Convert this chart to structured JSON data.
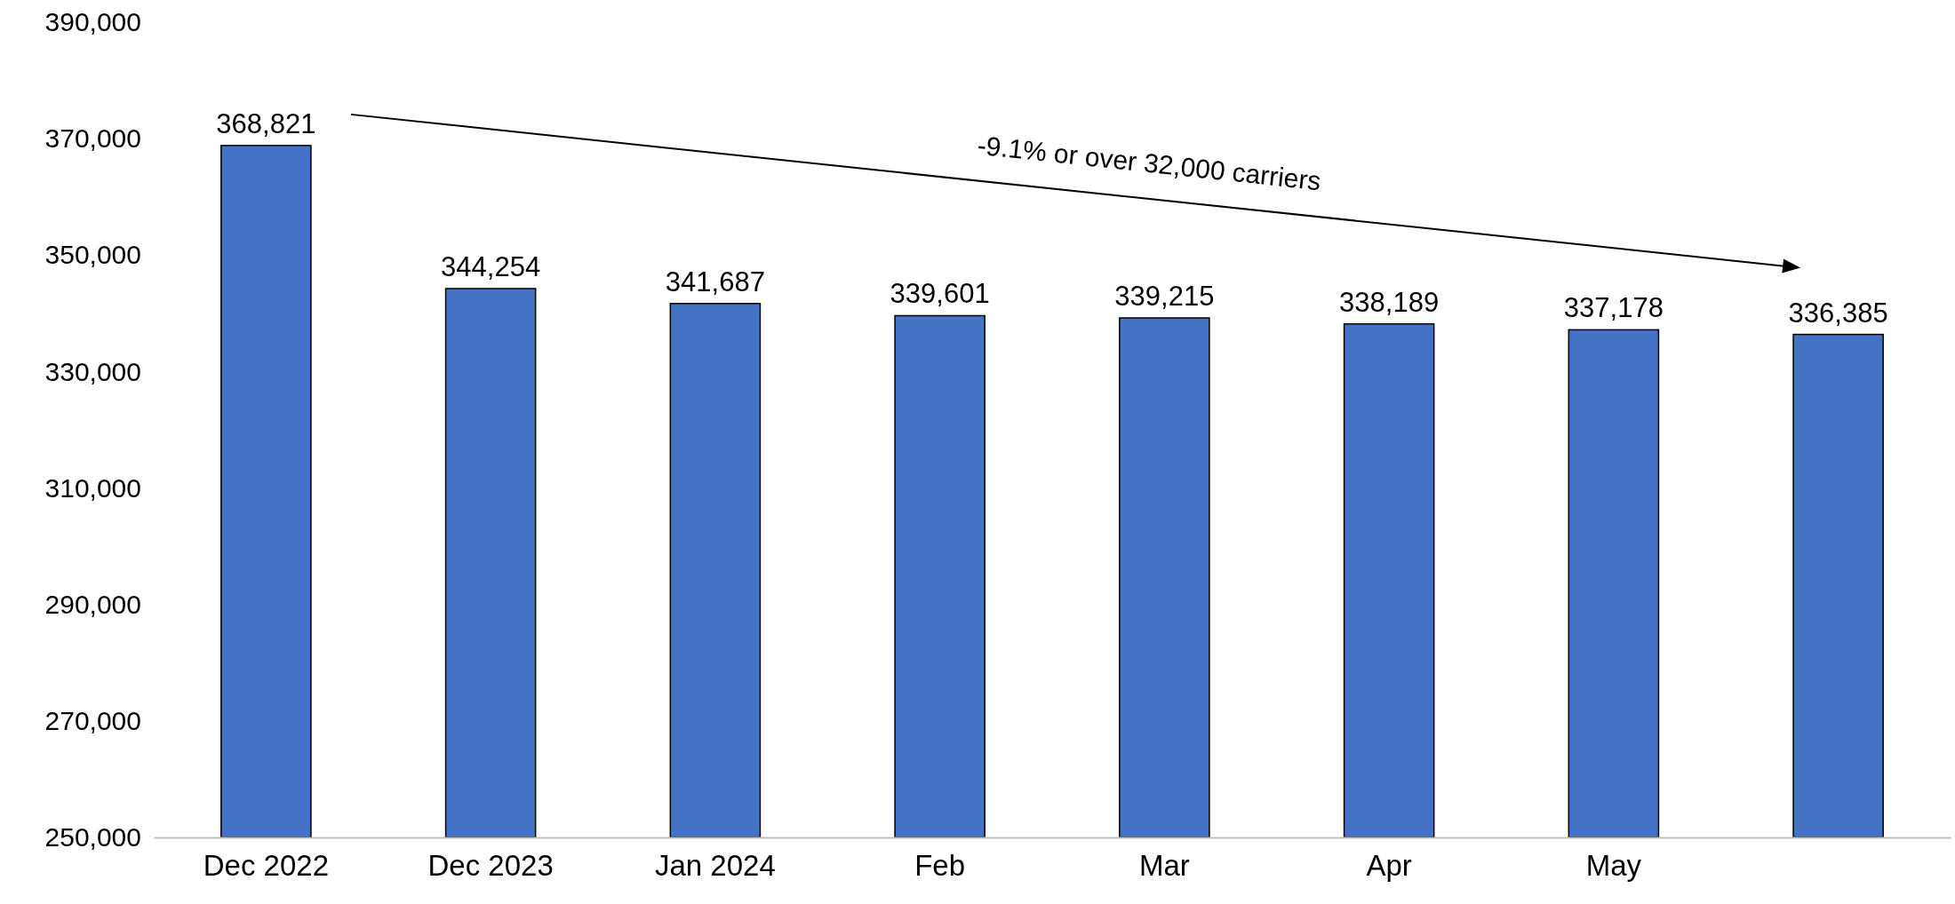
{
  "chart_data": {
    "type": "bar",
    "categories": [
      "Dec 2022",
      "Dec 2023",
      "Jan 2024",
      "Feb",
      "Mar",
      "Apr",
      "May",
      null
    ],
    "values": [
      368821,
      344254,
      341687,
      339601,
      339215,
      338189,
      337178,
      336385
    ],
    "color": "#4472c4",
    "ylim": [
      250000,
      390000
    ],
    "yticks": [
      {
        "value": 250000,
        "label": "250,000"
      },
      {
        "value": 270000,
        "label": "270,000"
      },
      {
        "value": 290000,
        "label": "290,000"
      },
      {
        "value": 310000,
        "label": "310,000"
      },
      {
        "value": 330000,
        "label": "330,000"
      },
      {
        "value": 350000,
        "label": "350,000"
      },
      {
        "value": 370000,
        "label": "370,000"
      },
      {
        "value": 390000,
        "label": "390,000"
      }
    ],
    "value_labels": [
      "368,821",
      "344,254",
      "341,687",
      "339,601",
      "339,215",
      "338,189",
      "337,178",
      "336,385"
    ],
    "annotations": [
      "-9.1% or over 32,000 carriers"
    ],
    "grid": false
  }
}
